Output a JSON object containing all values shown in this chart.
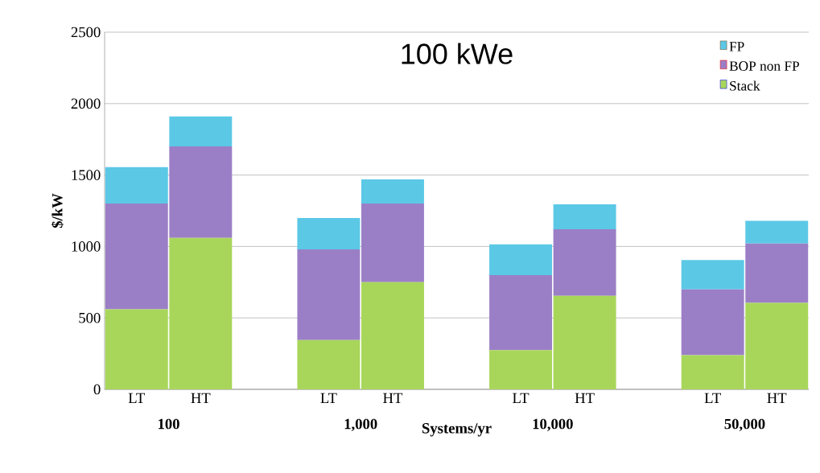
{
  "chart_data": {
    "type": "bar",
    "stacked": true,
    "title": "100 kWe",
    "xlabel": "Systems/yr",
    "ylabel": "$/kW",
    "categories": [
      "LT",
      "HT",
      null,
      "LT",
      "HT",
      null,
      "LT",
      "HT",
      null,
      "LT",
      "HT"
    ],
    "series": [
      {
        "name": "Stack",
        "color": "#a8d65a",
        "values": [
          560,
          1060,
          null,
          345,
          750,
          null,
          275,
          655,
          null,
          240,
          605
        ]
      },
      {
        "name": "BOP non FP",
        "color": "#9b7fc6",
        "values": [
          740,
          640,
          null,
          635,
          550,
          null,
          525,
          465,
          null,
          460,
          415
        ]
      },
      {
        "name": "FP",
        "color": "#5bc8e6",
        "values": [
          255,
          210,
          null,
          220,
          170,
          null,
          215,
          175,
          null,
          205,
          160
        ]
      }
    ],
    "annotations": [
      "100",
      "1,000",
      "10,000",
      "50,000"
    ],
    "ylim": [
      0,
      2500
    ],
    "yticks": [
      0,
      500,
      1000,
      1500,
      2000,
      2500
    ],
    "grid": "y",
    "legend": "top right"
  }
}
